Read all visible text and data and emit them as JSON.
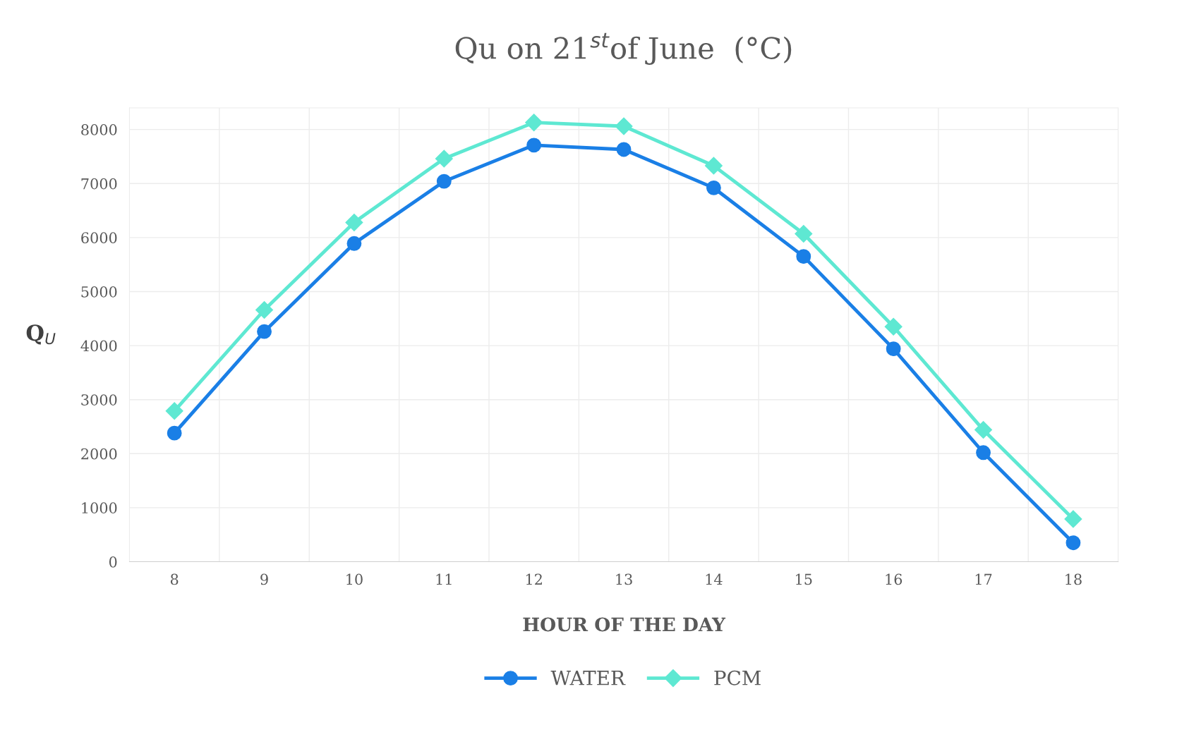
{
  "chart_data": {
    "type": "line",
    "title": "Qu on 21$^{st}$of June  (°C)",
    "xlabel": "HOUR OF THE DAY",
    "ylabel": "Q$_{U}$",
    "categories": [
      "8",
      "9",
      "10",
      "11",
      "12",
      "13",
      "14",
      "15",
      "16",
      "17",
      "18"
    ],
    "series": [
      {
        "name": "WATER",
        "color": "#1a7fe6",
        "marker": "circle",
        "values": [
          2380,
          4260,
          5890,
          7040,
          7710,
          7630,
          6920,
          5650,
          3940,
          2020,
          350
        ]
      },
      {
        "name": "PCM",
        "color": "#5ee8d2",
        "marker": "diamond",
        "values": [
          2790,
          4660,
          6280,
          7460,
          8130,
          8060,
          7330,
          6070,
          4350,
          2440,
          790
        ]
      }
    ],
    "ylim": [
      0,
      8400
    ],
    "yticks": [
      0,
      1000,
      2000,
      3000,
      4000,
      5000,
      6000,
      7000,
      8000
    ],
    "grid": true,
    "legend": "bottom",
    "line_style": "solid"
  }
}
